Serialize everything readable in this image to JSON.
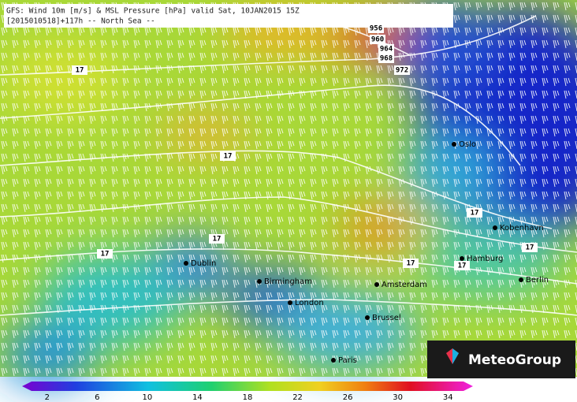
{
  "header": {
    "line1": "GFS: Wind 10m [m/s] & MSL Pressure [hPa] valid Sat, 10JAN2015 15Z",
    "line2": "[2015010518]+117h -- North Sea --"
  },
  "isobar_labels": [
    "956",
    "960",
    "964",
    "968",
    "972",
    "17",
    "17",
    "17",
    "17",
    "17",
    "17",
    "17",
    "17"
  ],
  "cities": [
    "Oslo",
    "Kobenhavn",
    "Hamburg",
    "Berlin",
    "Dublin",
    "Birmingham",
    "London",
    "Amsterdam",
    "Brussel",
    "Paris"
  ],
  "legend": {
    "min": 0,
    "max": 36,
    "ticks": [
      2,
      6,
      10,
      14,
      18,
      22,
      26,
      30,
      34
    ]
  },
  "logo": "MeteoGroup"
}
